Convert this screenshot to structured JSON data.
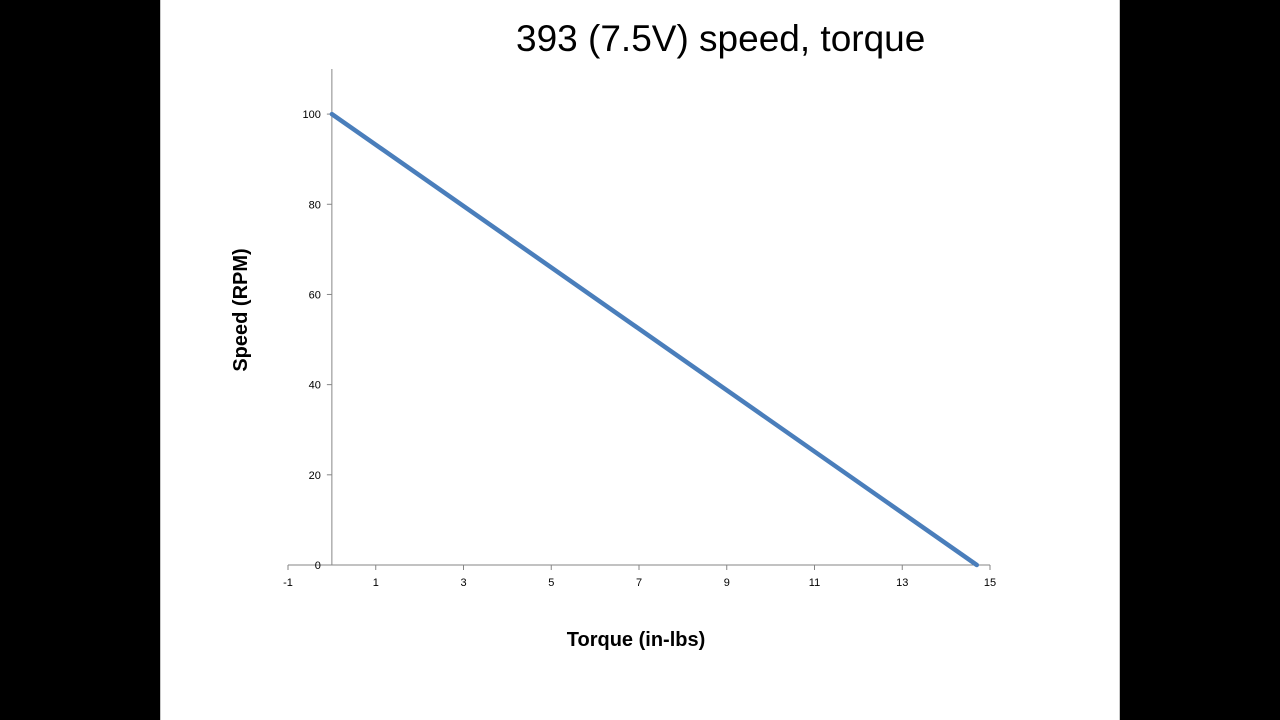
{
  "chart_data": {
    "type": "line",
    "title": "393 (7.5V) speed, torque",
    "xlabel": "Torque (in-lbs)",
    "ylabel": "Speed (RPM)",
    "xlim": [
      -1,
      15
    ],
    "ylim": [
      0,
      110
    ],
    "x_ticks": [
      -1,
      1,
      3,
      5,
      7,
      9,
      11,
      13,
      15
    ],
    "y_ticks": [
      0,
      20,
      40,
      60,
      80,
      100
    ],
    "grid": false,
    "legend": "none",
    "series": [
      {
        "x": [
          0,
          14.7
        ],
        "y": [
          100,
          0
        ],
        "color": "#4a7ebb"
      }
    ]
  }
}
